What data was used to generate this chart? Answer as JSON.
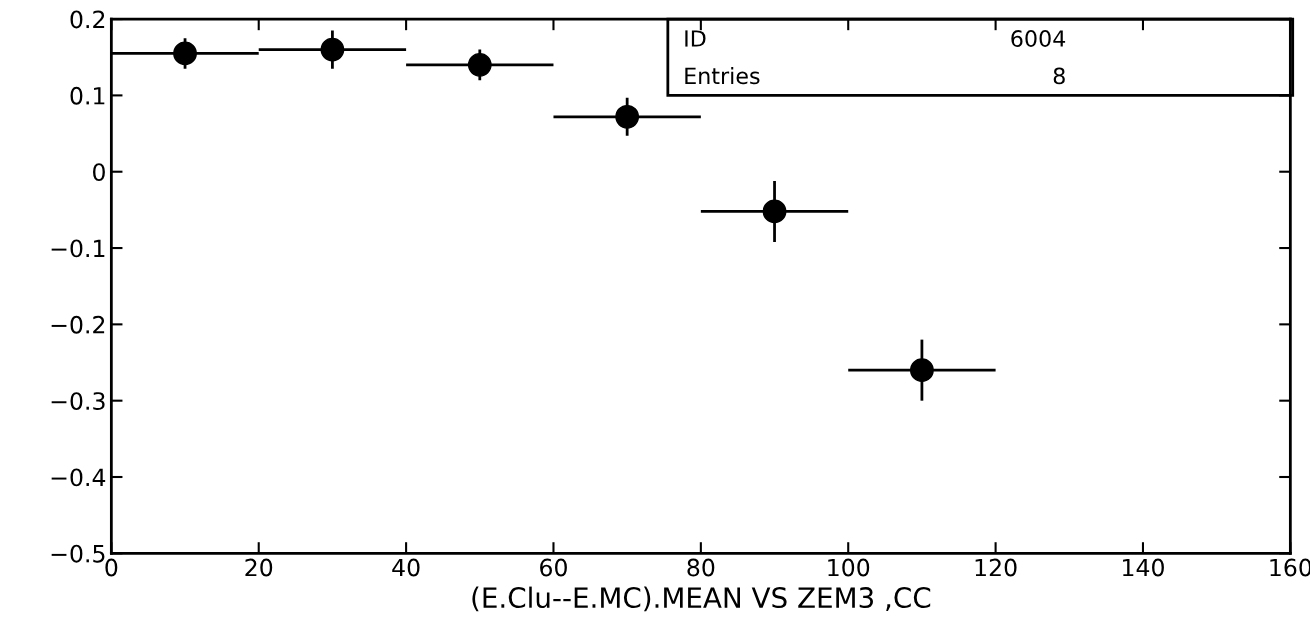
{
  "chart_data": {
    "type": "scatter",
    "xlabel": "(E.Clu--E.MC).MEAN VS ZEM3 ,CC",
    "x": [
      10,
      30,
      50,
      70,
      90,
      110
    ],
    "series": [
      {
        "color": "#000000",
        "values": [
          0.155,
          0.16,
          0.14,
          0.072,
          -0.052,
          -0.26
        ],
        "errors": [
          0.02,
          0.025,
          0.02,
          0.025,
          0.04,
          0.04
        ],
        "xerrors": [
          10,
          10,
          10,
          10,
          10,
          10
        ]
      }
    ],
    "xlim": [
      0,
      160
    ],
    "ylim": [
      -0.5,
      0.2
    ],
    "xticks": [
      0,
      20,
      40,
      60,
      80,
      100,
      120,
      140,
      160
    ],
    "yticks": [
      -0.5,
      -0.4,
      -0.3,
      -0.2,
      -0.1,
      0,
      0.1,
      0.2
    ],
    "marker": "circle",
    "grid": false,
    "legend": false,
    "annotations": [
      "ID",
      "6004",
      "Entries",
      "8"
    ]
  }
}
